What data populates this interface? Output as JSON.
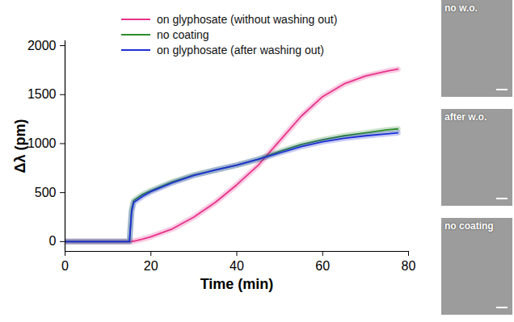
{
  "chart_data": {
    "type": "line",
    "x_label": "Time (min)",
    "y_label": "Δλ (pm)",
    "x": [
      0,
      5,
      10,
      15,
      15.5,
      16,
      18,
      20,
      25,
      30,
      35,
      40,
      45,
      50,
      55,
      60,
      65,
      70,
      75,
      77.5
    ],
    "series": [
      {
        "name": "on glyphosate (without washing out)",
        "color": "#e8338b",
        "values": [
          0,
          0,
          0,
          0,
          2,
          5,
          25,
          50,
          130,
          250,
          400,
          580,
          780,
          1030,
          1280,
          1480,
          1610,
          1690,
          1740,
          1760
        ]
      },
      {
        "name": "no coating",
        "color": "#2e8b2e",
        "values": [
          0,
          0,
          0,
          0,
          330,
          420,
          480,
          520,
          610,
          680,
          730,
          780,
          840,
          920,
          990,
          1040,
          1080,
          1110,
          1140,
          1150
        ]
      },
      {
        "name": "on glyphosate (after washing out)",
        "color": "#1f2fd6",
        "values": [
          0,
          0,
          0,
          0,
          300,
          400,
          460,
          510,
          600,
          675,
          730,
          780,
          840,
          905,
          970,
          1020,
          1055,
          1080,
          1100,
          1110
        ]
      }
    ],
    "xlim": [
      0,
      80
    ],
    "ylim": [
      -100,
      2050
    ],
    "xticks": [
      0,
      20,
      40,
      60,
      80
    ],
    "yticks": [
      0,
      500,
      1000,
      1500,
      2000
    ],
    "grid": false,
    "legend": "upper left",
    "image_labels": [
      "no w.o.",
      "after w.o.",
      "no coating"
    ]
  }
}
